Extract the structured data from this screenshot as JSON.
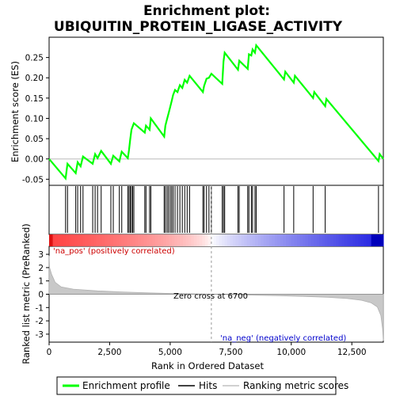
{
  "title_line1": "Enrichment plot:",
  "title_line2": "UBIQUITIN_PROTEIN_LIGASE_ACTIVITY",
  "chart_data": {
    "type": "line",
    "panels": {
      "enrichment": {
        "ylabel": "Enrichment score (ES)",
        "xlim": [
          0,
          13800
        ],
        "ylim": [
          -0.065,
          0.3
        ],
        "yticks": [
          -0.05,
          0.0,
          0.05,
          0.1,
          0.15,
          0.2,
          0.25
        ],
        "ytick_labels": [
          "-0.05",
          "0.00",
          "0.05",
          "0.10",
          "0.15",
          "0.20",
          "0.25"
        ],
        "series_name": "Enrichment profile",
        "line_color": "#00ff00",
        "points": [
          [
            0,
            0.0
          ],
          [
            680,
            -0.048
          ],
          [
            760,
            -0.012
          ],
          [
            1100,
            -0.035
          ],
          [
            1180,
            -0.008
          ],
          [
            1300,
            -0.018
          ],
          [
            1400,
            0.006
          ],
          [
            1800,
            -0.012
          ],
          [
            1900,
            0.012
          ],
          [
            2000,
            0.002
          ],
          [
            2150,
            0.02
          ],
          [
            2550,
            -0.012
          ],
          [
            2650,
            0.008
          ],
          [
            2900,
            -0.006
          ],
          [
            3000,
            0.018
          ],
          [
            3250,
            0.002
          ],
          [
            3300,
            0.022
          ],
          [
            3350,
            0.048
          ],
          [
            3400,
            0.072
          ],
          [
            3500,
            0.088
          ],
          [
            3950,
            0.065
          ],
          [
            4000,
            0.082
          ],
          [
            4150,
            0.072
          ],
          [
            4200,
            0.1
          ],
          [
            4750,
            0.055
          ],
          [
            4800,
            0.082
          ],
          [
            4870,
            0.098
          ],
          [
            4930,
            0.112
          ],
          [
            5000,
            0.128
          ],
          [
            5060,
            0.142
          ],
          [
            5120,
            0.158
          ],
          [
            5200,
            0.17
          ],
          [
            5300,
            0.165
          ],
          [
            5400,
            0.182
          ],
          [
            5500,
            0.175
          ],
          [
            5600,
            0.195
          ],
          [
            5700,
            0.188
          ],
          [
            5800,
            0.205
          ],
          [
            6350,
            0.165
          ],
          [
            6400,
            0.18
          ],
          [
            6500,
            0.198
          ],
          [
            6600,
            0.2
          ],
          [
            6700,
            0.21
          ],
          [
            7150,
            0.185
          ],
          [
            7200,
            0.24
          ],
          [
            7250,
            0.262
          ],
          [
            7800,
            0.22
          ],
          [
            7850,
            0.242
          ],
          [
            8200,
            0.222
          ],
          [
            8250,
            0.258
          ],
          [
            8350,
            0.255
          ],
          [
            8400,
            0.27
          ],
          [
            8500,
            0.262
          ],
          [
            8550,
            0.28
          ],
          [
            9700,
            0.196
          ],
          [
            9750,
            0.215
          ],
          [
            10100,
            0.188
          ],
          [
            10150,
            0.205
          ],
          [
            10900,
            0.15
          ],
          [
            10950,
            0.165
          ],
          [
            11400,
            0.13
          ],
          [
            11450,
            0.148
          ],
          [
            13600,
            -0.005
          ],
          [
            13650,
            0.012
          ],
          [
            13800,
            0.0
          ]
        ]
      },
      "hits": {
        "series_name": "Hits",
        "positions": [
          680,
          760,
          1100,
          1180,
          1300,
          1400,
          1800,
          1900,
          2000,
          2150,
          2550,
          2650,
          2900,
          3000,
          3250,
          3300,
          3350,
          3400,
          3450,
          3500,
          3950,
          4000,
          4150,
          4200,
          4750,
          4800,
          4870,
          4930,
          5000,
          5060,
          5120,
          5200,
          5300,
          5400,
          5500,
          5600,
          5700,
          5800,
          6350,
          6400,
          6500,
          6600,
          6700,
          7150,
          7200,
          7250,
          7800,
          7850,
          8200,
          8250,
          8350,
          8400,
          8500,
          8550,
          9700,
          10100,
          10900,
          11400,
          13600
        ]
      },
      "heatmap": {
        "label_pos": "'na_pos' (positively correlated)",
        "label_neg": "'na_neg' (negatively correlated)",
        "pos_color": "#cc0000",
        "neg_color": "#0000cc",
        "zero_at": 6700
      },
      "ranked_metric": {
        "ylabel": "Ranked list metric (PreRanked)",
        "xlabel": "Rank in Ordered Dataset",
        "series_name": "Ranking metric scores",
        "ylim": [
          -3.6,
          3.6
        ],
        "yticks": [
          -3,
          -2,
          -1,
          0,
          1,
          2,
          3
        ],
        "ytick_labels": [
          "-3",
          "-2",
          "-1",
          "0",
          "1",
          "2",
          "3"
        ],
        "xticks": [
          0,
          2500,
          5000,
          7500,
          10000,
          12500
        ],
        "xtick_labels": [
          "0",
          "2,500",
          "5,000",
          "7,500",
          "10,000",
          "12,500"
        ],
        "zero_cross_label": "Zero cross at 6700",
        "curve": [
          [
            0,
            2.9
          ],
          [
            20,
            2.0
          ],
          [
            100,
            1.5
          ],
          [
            250,
            0.9
          ],
          [
            500,
            0.55
          ],
          [
            1000,
            0.38
          ],
          [
            2000,
            0.25
          ],
          [
            3000,
            0.17
          ],
          [
            4000,
            0.11
          ],
          [
            5000,
            0.06
          ],
          [
            6000,
            0.03
          ],
          [
            6700,
            0.0
          ],
          [
            7500,
            -0.03
          ],
          [
            8500,
            -0.07
          ],
          [
            9500,
            -0.11
          ],
          [
            10500,
            -0.16
          ],
          [
            11500,
            -0.23
          ],
          [
            12300,
            -0.32
          ],
          [
            12900,
            -0.45
          ],
          [
            13300,
            -0.65
          ],
          [
            13550,
            -0.95
          ],
          [
            13700,
            -1.6
          ],
          [
            13770,
            -2.6
          ],
          [
            13800,
            -3.5
          ]
        ]
      }
    },
    "legend": {
      "items": [
        "Enrichment profile",
        "Hits",
        "Ranking metric scores"
      ],
      "colors": [
        "#00ff00",
        "#000000",
        "#c0c0c0"
      ]
    }
  }
}
